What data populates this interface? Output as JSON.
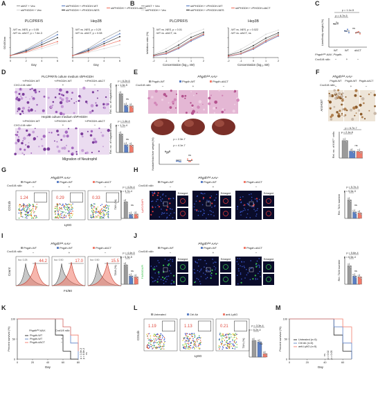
{
  "panel_letters": [
    "A",
    "B",
    "C",
    "D",
    "E",
    "F",
    "G",
    "H",
    "I",
    "J",
    "K",
    "L",
    "M"
  ],
  "legend_AB": {
    "items": [
      "shNT + Vec",
      "shPHGDH + Vec",
      "shPHGDH + rPHGDH-WT",
      "shPHGDH + rPHGDH-NES",
      "shPHGDH + rPHGDH-dACT"
    ],
    "colors": [
      "#9e9e9e",
      "#d8d8d8",
      "#5b7fc4",
      "#3a3a3a",
      "#f07a6a"
    ]
  },
  "panel_A": {
    "subtitle_left": "PLC/PRF/5",
    "subtitle_right": "Hep3B",
    "ylabel": "OD450nm",
    "xlabel": "Day",
    "stats_left": [
      "-WT vs -NES, p = 0.05",
      "-WT vs -dACT, p = 7.6e-3"
    ],
    "stats_right": [
      "-WT vs -NES, p = 0.20",
      "-WT vs -dACT, p = 0.08"
    ]
  },
  "panel_B": {
    "subtitle_left": "PLC/PRF/5",
    "subtitle_right": "Hep3B",
    "ylabel": "Inhibition ratio (%)",
    "xlabel": "Concentration (log₁₀ nM)",
    "stats_left": [
      "-WT vs -NES, p = 0.01",
      "-WT vs -dACT, ns"
    ],
    "stats_right": [
      "-WT vs -NES, p = 0.022",
      "-WT vs -dACT, ns"
    ]
  },
  "panel_C": {
    "header_top": "PLC/PRF/5 culture medium   shPHGDH",
    "header_bottom": "Hep3B culture medium   shPHGDH",
    "col_labels": [
      "+rPHGDH-WT",
      "+rPHGDH-WT",
      "+rPHGDH-dACT"
    ],
    "row_label": "CXCL1/8 nAb",
    "signs": [
      "−",
      "+",
      "−"
    ],
    "caption": "Migration of Neutrophil",
    "ylabel": "Rel. no. of migrated cells",
    "stats_top": [
      "p = 6.2e-6",
      "p = 1.0e-5",
      "ns"
    ],
    "stats_bottom": [
      "p = 1.4e-4",
      "p = 1.7e-4",
      "ns"
    ]
  },
  "panel_D": {
    "title": "Phgdhᴼᴬ AAV-",
    "cols": [
      "Phgdh-WT",
      "Phgdh-WT",
      "Phgdh-dACT"
    ],
    "row_label": "Cxcl1/8 nAb",
    "signs": [
      "−",
      "+",
      "−"
    ],
    "ylabel": "Nodule/total liver weight (%)",
    "stats": [
      "p = 2.3e-7",
      "p = 4.1e-7",
      "ns"
    ]
  },
  "panel_E": {
    "stats": [
      "p = 1.1e-5",
      "p = 6.7e-5",
      "ns"
    ],
    "ylabel": "Liver/body weight (%)",
    "xlabels": [
      "WT",
      "WT",
      "dACT"
    ],
    "row1": "Phgdhᴼᴬ AAV- Phgdh-",
    "row2": "Cxcl1/8 nAb",
    "signs": [
      "−",
      "+",
      "−"
    ]
  },
  "panel_F": {
    "title": "Phgdhᴼᴬ AAV-",
    "cols": [
      "Phgdh-WT",
      "Phgdh-WT",
      "Phgdh-dACT"
    ],
    "row_label": "Cxcl1/8 nAb",
    "signs": [
      "−",
      "+",
      "−"
    ],
    "side_label": "Anti-Ki67",
    "ylabel": "Rel. no. of Ki67⁺ cells",
    "stats": [
      "p = 6.7e-7",
      "p = 2.1e-6",
      "ns"
    ]
  },
  "panel_G": {
    "title": "Phgdhᴼᴬ AAV-",
    "cols": [
      "Phgdh-WT",
      "Phgdh-WT",
      "Phgdh-dACT"
    ],
    "row_label": "Cxcl1/8 nAb",
    "signs": [
      "−",
      "+",
      "−"
    ],
    "gates": [
      "1.24",
      "0.29",
      "0.33"
    ],
    "xlabel": "Ly6G",
    "ylabel": "CD11b",
    "bar_ylabel": "TAN (%)",
    "stats": [
      "p = 4.2e-4",
      "p = 3.7e-4",
      "ns"
    ]
  },
  "panel_H": {
    "title": "Phgdhᴼᴬ AAV-",
    "cols": [
      "Phgdh-WT",
      "Phgdh-WT",
      "Phgdh-dACT"
    ],
    "row_label": "Cxcl1/8 nAb",
    "signs": [
      "−",
      "+",
      "−"
    ],
    "enlarged": "Enlarged",
    "side_label": "Ly6G/DAPI",
    "ylabel": "Rel. TAN number",
    "stats": [
      "p = 5.7e-3",
      "p = 5.9e-3",
      "ns"
    ]
  },
  "panel_I": {
    "title": "Phgdhᴼᴬ AAV-",
    "cols": [
      "Phgdh-WT",
      "Phgdh-WT",
      "Phgdh-dACT"
    ],
    "row_label": "Cxcl1/8 nAb",
    "signs": [
      "−",
      "+",
      "−"
    ],
    "iso_labels": [
      "Iso: 0.28",
      "Iso: 0.50",
      "Iso: 0.50"
    ],
    "values": [
      "44.2",
      "17.0",
      "15.5"
    ],
    "xlabel": "F4/80",
    "ylabel": "Count",
    "bar_ylabel": "TAM (%)",
    "stats": [
      "p = 4.4e-5",
      "p = 5.3e-5",
      "ns"
    ]
  },
  "panel_J": {
    "title": "Phgdhᴼᴬ AAV-",
    "cols": [
      "Phgdh-WT",
      "Phgdh-WT",
      "Phgdh-dACT"
    ],
    "row_label": "Cxcl1/8 nAb",
    "signs": [
      "−",
      "+",
      "−"
    ],
    "enlarged": "Enlarged",
    "side_label": "F4/80/DAPI",
    "ylabel": "Rel. TAM number",
    "stats": [
      "p = 5.6e-4",
      "p = 6.5e-4",
      "ns"
    ]
  },
  "panel_K": {
    "ylabel": "Percent survival (%)",
    "xlabel": "Day",
    "legend_head": [
      "Phgdhᴼᴬ AAV-",
      "Cxcl1/8 nAb"
    ],
    "legend": [
      "Phgdh-WT",
      "Phgdh-WT",
      "Phgdh-dACT"
    ],
    "signs": [
      "−",
      "+",
      "−"
    ],
    "stats": [
      "p = 1.0e-3",
      "p = 8.8e-3",
      "ns"
    ]
  },
  "panel_L": {
    "cols": [
      "Untreated",
      "Ctrl Ab",
      "anti-Ly6G"
    ],
    "gates": [
      "1.19",
      "1.13",
      "0.21"
    ],
    "xlabel": "Ly6G",
    "ylabel": "CD11b",
    "bar_ylabel": "TAN (%)",
    "stats": [
      "p = 3.3e-4",
      "p = 6.2e-4",
      "ns"
    ]
  },
  "panel_M": {
    "ylabel": "Percent survival (%)",
    "xlabel": "Day",
    "legend": [
      "Untreated (n=5)",
      "Ctrl Ab (n=5)",
      "anti-Ly6G (n=5)"
    ],
    "stats": [
      "ns",
      "p = 0.02",
      "p = 0.05"
    ]
  },
  "chart_data": [
    {
      "panel": "A",
      "type": "line",
      "title": "PLC/PRF/5",
      "xlabel": "Day",
      "ylabel": "OD450nm",
      "x": [
        0,
        2,
        4,
        6
      ],
      "ylim": [
        0,
        3
      ],
      "series": [
        {
          "name": "shNT + Vec",
          "values": [
            0.2,
            0.8,
            1.7,
            2.6
          ]
        },
        {
          "name": "shPHGDH + Vec",
          "values": [
            0.2,
            0.5,
            0.9,
            1.4
          ]
        },
        {
          "name": "shPHGDH + rPHGDH-WT",
          "values": [
            0.2,
            0.7,
            1.5,
            2.3
          ]
        },
        {
          "name": "shPHGDH + rPHGDH-NES",
          "values": [
            0.2,
            0.65,
            1.3,
            2.0
          ]
        },
        {
          "name": "shPHGDH + rPHGDH-dACT",
          "values": [
            0.2,
            0.55,
            1.1,
            1.6
          ]
        }
      ]
    },
    {
      "panel": "A",
      "type": "line",
      "title": "Hep3B",
      "xlabel": "Day",
      "ylabel": "OD450nm",
      "x": [
        0,
        2,
        4,
        6
      ],
      "ylim": [
        0,
        3
      ],
      "series": [
        {
          "name": "shNT + Vec",
          "values": [
            0.2,
            0.9,
            1.9,
            2.7
          ]
        },
        {
          "name": "shPHGDH + Vec",
          "values": [
            0.2,
            0.5,
            0.9,
            1.3
          ]
        },
        {
          "name": "shPHGDH + rPHGDH-WT",
          "values": [
            0.2,
            0.8,
            1.6,
            2.4
          ]
        },
        {
          "name": "shPHGDH + rPHGDH-NES",
          "values": [
            0.2,
            0.7,
            1.4,
            2.1
          ]
        },
        {
          "name": "shPHGDH + rPHGDH-dACT",
          "values": [
            0.2,
            0.6,
            1.2,
            1.7
          ]
        }
      ]
    },
    {
      "panel": "B",
      "type": "line",
      "title": "PLC/PRF/5",
      "xlabel": "Concentration (log10 nM)",
      "ylabel": "Inhibition ratio (%)",
      "x": [
        -2,
        -1,
        0,
        1,
        2
      ],
      "ylim": [
        0,
        100
      ],
      "series": [
        {
          "name": "shNT + Vec",
          "values": [
            5,
            15,
            35,
            60,
            80
          ]
        },
        {
          "name": "shPHGDH + Vec",
          "values": [
            10,
            30,
            55,
            80,
            95
          ]
        },
        {
          "name": "shPHGDH + rPHGDH-WT",
          "values": [
            5,
            12,
            30,
            55,
            75
          ]
        },
        {
          "name": "shPHGDH + rPHGDH-NES",
          "values": [
            8,
            20,
            42,
            68,
            85
          ]
        },
        {
          "name": "shPHGDH + rPHGDH-dACT",
          "values": [
            6,
            14,
            32,
            58,
            78
          ]
        }
      ]
    },
    {
      "panel": "B",
      "type": "line",
      "title": "Hep3B",
      "xlabel": "Concentration (log10 nM)",
      "ylabel": "Inhibition ratio (%)",
      "x": [
        -2,
        -1,
        0,
        1,
        2
      ],
      "ylim": [
        0,
        100
      ],
      "series": [
        {
          "name": "shNT + Vec",
          "values": [
            5,
            14,
            33,
            58,
            78
          ]
        },
        {
          "name": "shPHGDH + Vec",
          "values": [
            10,
            28,
            52,
            78,
            92
          ]
        },
        {
          "name": "shPHGDH + rPHGDH-WT",
          "values": [
            4,
            12,
            28,
            52,
            72
          ]
        },
        {
          "name": "shPHGDH + rPHGDH-NES",
          "values": [
            8,
            20,
            40,
            65,
            83
          ]
        },
        {
          "name": "shPHGDH + rPHGDH-dACT",
          "values": [
            5,
            13,
            30,
            55,
            74
          ]
        }
      ]
    },
    {
      "panel": "C-top",
      "type": "bar",
      "ylabel": "Rel. no. of migrated cells",
      "categories": [
        "WT −",
        "WT +",
        "dACT −"
      ],
      "values": [
        1.0,
        0.38,
        0.35
      ],
      "ylim": [
        0,
        1.5
      ]
    },
    {
      "panel": "C-bottom",
      "type": "bar",
      "ylabel": "Rel. no. of migrated cells",
      "categories": [
        "WT −",
        "WT +",
        "dACT −"
      ],
      "values": [
        1.0,
        0.42,
        0.4
      ],
      "ylim": [
        0,
        1.5
      ]
    },
    {
      "panel": "D",
      "type": "scatter",
      "ylabel": "Nodule/total liver weight (%)",
      "categories": [
        "WT −",
        "WT +",
        "dACT −"
      ],
      "values": [
        30,
        10,
        9
      ],
      "ylim": [
        0,
        50
      ]
    },
    {
      "panel": "E",
      "type": "scatter",
      "ylabel": "Liver/body weight (%)",
      "categories": [
        "WT",
        "WT",
        "dACT"
      ],
      "values": [
        16,
        11,
        10
      ],
      "ylim": [
        0,
        20
      ]
    },
    {
      "panel": "F",
      "type": "bar",
      "ylabel": "Rel. no. of Ki67+ cells",
      "categories": [
        "WT −",
        "WT +",
        "dACT −"
      ],
      "values": [
        1.0,
        0.4,
        0.38
      ],
      "ylim": [
        0,
        1.5
      ]
    },
    {
      "panel": "G",
      "type": "bar",
      "ylabel": "TAN (%)",
      "categories": [
        "WT −",
        "WT +",
        "dACT −"
      ],
      "values": [
        1.2,
        0.3,
        0.32
      ],
      "ylim": [
        0,
        2
      ]
    },
    {
      "panel": "H",
      "type": "bar",
      "ylabel": "Rel. TAN number",
      "categories": [
        "WT −",
        "WT +",
        "dACT −"
      ],
      "values": [
        1.0,
        0.35,
        0.3
      ],
      "ylim": [
        0,
        1.5
      ]
    },
    {
      "panel": "I",
      "type": "bar",
      "ylabel": "TAM (%)",
      "categories": [
        "WT −",
        "WT +",
        "dACT −"
      ],
      "values": [
        42,
        18,
        16
      ],
      "ylim": [
        0,
        60
      ]
    },
    {
      "panel": "J",
      "type": "bar",
      "ylabel": "Rel. TAM number",
      "categories": [
        "WT −",
        "WT +",
        "dACT −"
      ],
      "values": [
        1.0,
        0.45,
        0.4
      ],
      "ylim": [
        0,
        1.5
      ]
    },
    {
      "panel": "K",
      "type": "line",
      "ylabel": "Percent survival (%)",
      "xlabel": "Day",
      "x": [
        0,
        40,
        50,
        60,
        70,
        80
      ],
      "ylim": [
        0,
        100
      ],
      "series": [
        {
          "name": "Phgdh-WT",
          "values": [
            100,
            100,
            60,
            20,
            0,
            0
          ]
        },
        {
          "name": "Phgdh-WT",
          "values": [
            100,
            100,
            100,
            80,
            40,
            0
          ]
        },
        {
          "name": "Phgdh-dACT",
          "values": [
            100,
            100,
            100,
            80,
            60,
            20
          ]
        }
      ]
    },
    {
      "panel": "L",
      "type": "bar",
      "ylabel": "TAN (%)",
      "categories": [
        "Untreated",
        "Ctrl Ab",
        "anti-Ly6G"
      ],
      "values": [
        1.2,
        1.1,
        0.25
      ],
      "ylim": [
        0,
        2
      ]
    },
    {
      "panel": "M",
      "type": "line",
      "ylabel": "Percent survival (%)",
      "xlabel": "Day",
      "x": [
        0,
        40,
        50,
        60,
        70
      ],
      "ylim": [
        0,
        100
      ],
      "series": [
        {
          "name": "Untreated (n=5)",
          "values": [
            100,
            100,
            60,
            20,
            0
          ]
        },
        {
          "name": "Ctrl Ab (n=5)",
          "values": [
            100,
            100,
            80,
            40,
            0
          ]
        },
        {
          "name": "anti-Ly6G (n=5)",
          "values": [
            100,
            100,
            100,
            80,
            40
          ]
        }
      ]
    }
  ]
}
